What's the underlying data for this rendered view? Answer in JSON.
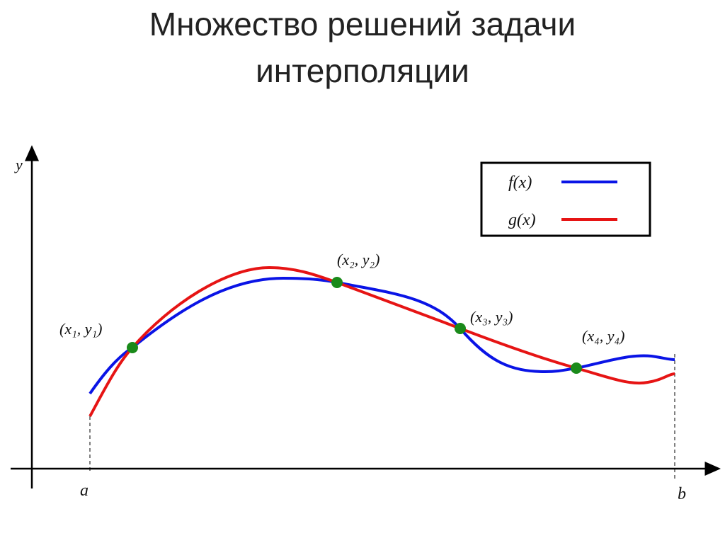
{
  "title": [
    "Множество решений задачи",
    "интерполяции"
  ],
  "axes": {
    "y": "y",
    "a": "a",
    "b": "b"
  },
  "legend": [
    "f(x)",
    "g(x)"
  ],
  "points": [
    "(x₁, y₁)",
    "(x₂, y₂)",
    "(x₃, y₃)",
    "(x₄, y₄)"
  ]
}
